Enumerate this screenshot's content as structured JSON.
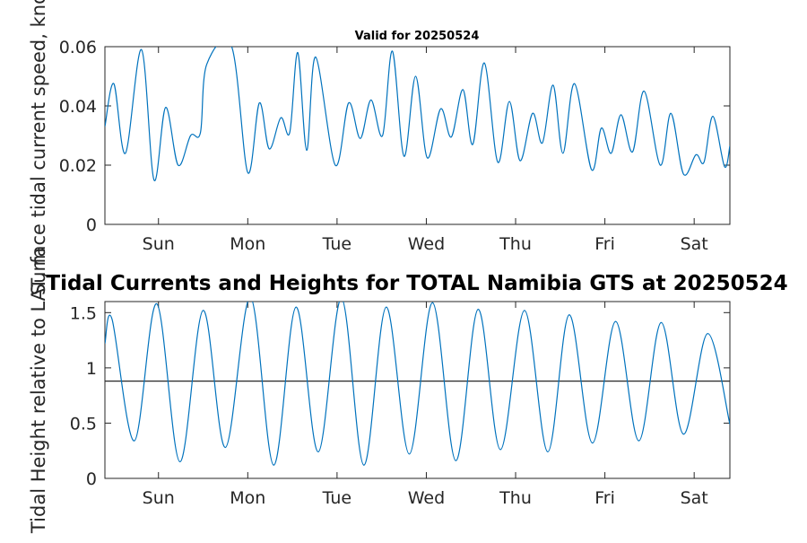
{
  "chart_data": [
    {
      "type": "line",
      "title": "Valid for 20250524",
      "ylabel": "Surface tidal current speed, knots",
      "xlabel": "",
      "xlim": [
        0,
        7.0
      ],
      "ylim": [
        0,
        0.06
      ],
      "yticks": [
        0,
        0.02,
        0.04,
        0.06
      ],
      "ytick_labels": [
        "0",
        "0.02",
        "0.04",
        "0.06"
      ],
      "xticks": [
        0.6,
        1.6,
        2.6,
        3.6,
        4.6,
        5.6,
        6.6
      ],
      "xtick_labels": [
        "Sun",
        "Mon",
        "Tue",
        "Wed",
        "Thu",
        "Fri",
        "Sat"
      ],
      "grid": false,
      "color": "#0072bd",
      "series": [
        {
          "x": [
            0.0,
            0.1,
            0.23,
            0.41,
            0.55,
            0.68,
            0.82,
            0.96,
            1.07,
            1.14,
            1.42,
            1.6,
            1.73,
            1.84,
            1.97,
            2.07,
            2.16,
            2.26,
            2.36,
            2.58,
            2.73,
            2.86,
            2.98,
            3.11,
            3.22,
            3.35,
            3.48,
            3.61,
            3.76,
            3.88,
            4.01,
            4.12,
            4.25,
            4.4,
            4.53,
            4.65,
            4.79,
            4.9,
            5.02,
            5.13,
            5.26,
            5.45,
            5.56,
            5.67,
            5.78,
            5.91,
            6.04,
            6.22,
            6.34,
            6.48,
            6.62,
            6.71,
            6.81,
            6.94,
            7.0
          ],
          "y": [
            0.033,
            0.0475,
            0.024,
            0.059,
            0.015,
            0.0395,
            0.02,
            0.03,
            0.031,
            0.054,
            0.06,
            0.0175,
            0.041,
            0.0255,
            0.036,
            0.031,
            0.058,
            0.025,
            0.0565,
            0.02,
            0.041,
            0.029,
            0.042,
            0.03,
            0.0585,
            0.023,
            0.05,
            0.0225,
            0.039,
            0.0295,
            0.0455,
            0.027,
            0.0545,
            0.021,
            0.0415,
            0.0215,
            0.0375,
            0.0275,
            0.047,
            0.024,
            0.0475,
            0.0185,
            0.0325,
            0.024,
            0.037,
            0.0245,
            0.045,
            0.02,
            0.0375,
            0.017,
            0.0235,
            0.021,
            0.0365,
            0.0195,
            0.0265
          ]
        }
      ]
    },
    {
      "type": "line",
      "title": "Tidal Currents and Heights for TOTAL Namibia GTS at 20250524",
      "ylabel": "Tidal Height relative to LAT, m",
      "xlabel": "",
      "xlim": [
        0,
        7.0
      ],
      "ylim": [
        0,
        1.6
      ],
      "yticks": [
        0,
        0.5,
        1,
        1.5
      ],
      "ytick_labels": [
        "0",
        "0.5",
        "1",
        "1.5"
      ],
      "xticks": [
        0.6,
        1.6,
        2.6,
        3.6,
        4.6,
        5.6,
        6.6
      ],
      "xtick_labels": [
        "Sun",
        "Mon",
        "Tue",
        "Wed",
        "Thu",
        "Fri",
        "Sat"
      ],
      "grid": false,
      "color": "#0072bd",
      "reference_line": 0.88,
      "series": [
        {
          "x": [
            0.0,
            0.08,
            0.33,
            0.58,
            0.84,
            1.1,
            1.35,
            1.63,
            1.89,
            2.14,
            2.39,
            2.65,
            2.9,
            3.15,
            3.41,
            3.67,
            3.93,
            4.18,
            4.43,
            4.7,
            4.96,
            5.2,
            5.46,
            5.72,
            5.98,
            6.23,
            6.48,
            6.75,
            7.0
          ],
          "y": [
            1.22,
            1.44,
            0.34,
            1.58,
            0.15,
            1.52,
            0.28,
            1.64,
            0.12,
            1.55,
            0.24,
            1.63,
            0.12,
            1.55,
            0.22,
            1.59,
            0.16,
            1.53,
            0.26,
            1.52,
            0.24,
            1.48,
            0.32,
            1.42,
            0.34,
            1.41,
            0.4,
            1.31,
            0.49
          ]
        }
      ]
    }
  ]
}
